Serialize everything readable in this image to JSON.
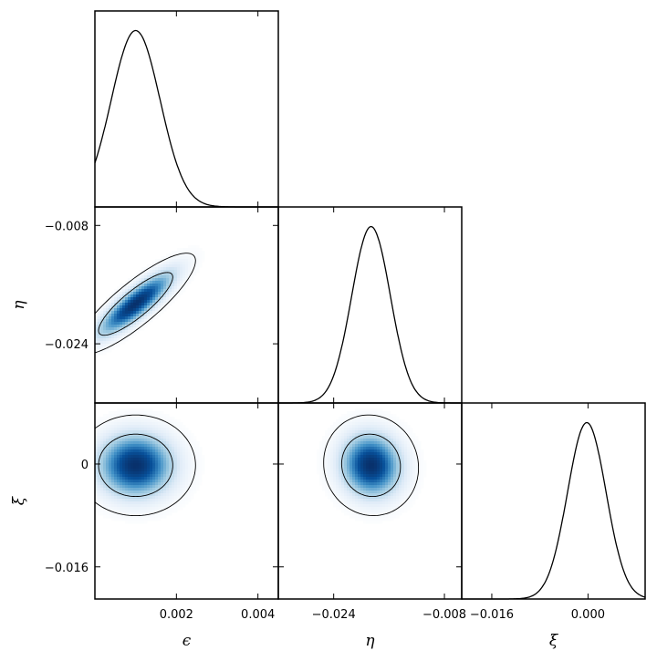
{
  "chart_data": {
    "type": "corner",
    "parameters": [
      {
        "name": "epsilon",
        "label": "ϵ",
        "mean": 0.001,
        "sd": 0.0006,
        "range": [
          0.0,
          0.0045
        ],
        "ticks": [
          {
            "value": 0.002,
            "label": "0.002"
          },
          {
            "value": 0.004,
            "label": "0.004"
          }
        ]
      },
      {
        "name": "eta",
        "label": "η",
        "mean": -0.0186,
        "sd": 0.0028,
        "range": [
          -0.032,
          -0.0055
        ],
        "ticks": [
          {
            "value": -0.024,
            "label": "−0.024"
          },
          {
            "value": -0.008,
            "label": "−0.008"
          }
        ]
      },
      {
        "name": "xi",
        "label": "ξ",
        "mean": -0.0002,
        "sd": 0.0032,
        "range": [
          -0.021,
          0.0095
        ],
        "ticks": [
          {
            "value": -0.016,
            "label": "−0.016"
          },
          {
            "value": 0.0,
            "label": "0.000"
          }
        ]
      }
    ],
    "correlations": [
      {
        "pair": [
          "epsilon",
          "eta"
        ],
        "rho": 0.85
      },
      {
        "pair": [
          "epsilon",
          "xi"
        ],
        "rho": 0.0
      },
      {
        "pair": [
          "eta",
          "xi"
        ],
        "rho": -0.05
      }
    ],
    "contour_levels": [
      "68%",
      "95%"
    ],
    "diagonal": "1D marginal density curves",
    "offdiagonal": "2D density (blue colormap) with contours",
    "xi_row_ticks": [
      {
        "value": 0.0,
        "label": "0"
      },
      {
        "value": -0.016,
        "label": "−0.016"
      }
    ],
    "colormap": [
      "#ffffff",
      "#08306b"
    ]
  }
}
